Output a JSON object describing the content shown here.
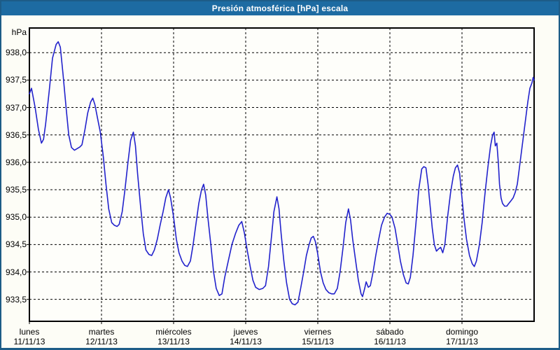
{
  "chart_data": {
    "type": "line",
    "title": "Presión atmosférica [hPa] escala",
    "y_unit": "hPa",
    "xlabel": "",
    "ylabel": "hPa",
    "ylim": [
      933.1,
      938.45
    ],
    "x_hours_range": [
      0,
      168
    ],
    "grid": "dashed-black",
    "legend": "none",
    "colors": {
      "line": "#2222cc",
      "titlebar_bg": "#1d6ba2",
      "titlebar_text": "#ffffff",
      "window_border": "#1d5c87",
      "background": "#fdfdf6",
      "grid_color": "#000000"
    },
    "y_ticks": [
      {
        "value": 938.0,
        "label": "938,0"
      },
      {
        "value": 937.5,
        "label": "937,5"
      },
      {
        "value": 937.0,
        "label": "937,0"
      },
      {
        "value": 936.5,
        "label": "936,5"
      },
      {
        "value": 936.0,
        "label": "936,0"
      },
      {
        "value": 935.5,
        "label": "935,5"
      },
      {
        "value": 935.0,
        "label": "935,0"
      },
      {
        "value": 934.5,
        "label": "934,5"
      },
      {
        "value": 934.0,
        "label": "934,0"
      },
      {
        "value": 933.5,
        "label": "933,5"
      }
    ],
    "x_ticks": [
      {
        "hour": 0,
        "day": "lunes",
        "date": "11/11/13"
      },
      {
        "hour": 24,
        "day": "martes",
        "date": "12/11/13"
      },
      {
        "hour": 48,
        "day": "miércoles",
        "date": "13/11/13"
      },
      {
        "hour": 72,
        "day": "jueves",
        "date": "14/11/13"
      },
      {
        "hour": 96,
        "day": "viernes",
        "date": "15/11/13"
      },
      {
        "hour": 120,
        "day": "sábado",
        "date": "16/11/13"
      },
      {
        "hour": 144,
        "day": "domingo",
        "date": "17/11/13"
      }
    ],
    "series": [
      {
        "name": "Presión atmosférica",
        "color": "#2222cc",
        "points": [
          [
            0,
            937.25
          ],
          [
            0.7,
            937.35
          ],
          [
            1.9,
            937.0
          ],
          [
            3,
            936.6
          ],
          [
            4,
            936.35
          ],
          [
            4.7,
            936.42
          ],
          [
            5.4,
            936.7
          ],
          [
            6.6,
            937.3
          ],
          [
            7.7,
            937.9
          ],
          [
            8.9,
            938.15
          ],
          [
            9.6,
            938.2
          ],
          [
            10.3,
            938.1
          ],
          [
            11.2,
            937.6
          ],
          [
            12.2,
            937.0
          ],
          [
            13.1,
            936.5
          ],
          [
            14,
            936.27
          ],
          [
            15,
            936.22
          ],
          [
            15.9,
            936.25
          ],
          [
            16.8,
            936.28
          ],
          [
            17.5,
            936.32
          ],
          [
            18.5,
            936.6
          ],
          [
            19.4,
            936.9
          ],
          [
            20.4,
            937.1
          ],
          [
            21.1,
            937.17
          ],
          [
            21.8,
            937.05
          ],
          [
            22.7,
            936.8
          ],
          [
            23.6,
            936.55
          ],
          [
            24.6,
            936.1
          ],
          [
            25.5,
            935.6
          ],
          [
            26.4,
            935.15
          ],
          [
            27.4,
            934.9
          ],
          [
            28.3,
            934.85
          ],
          [
            29.2,
            934.83
          ],
          [
            29.9,
            934.87
          ],
          [
            30.9,
            935.1
          ],
          [
            31.8,
            935.5
          ],
          [
            32.8,
            936.0
          ],
          [
            33.7,
            936.4
          ],
          [
            34.6,
            936.55
          ],
          [
            35.3,
            936.3
          ],
          [
            36,
            935.8
          ],
          [
            37,
            935.2
          ],
          [
            37.9,
            934.7
          ],
          [
            38.8,
            934.4
          ],
          [
            39.8,
            934.32
          ],
          [
            40.7,
            934.3
          ],
          [
            41.6,
            934.4
          ],
          [
            42.6,
            934.6
          ],
          [
            43.5,
            934.85
          ],
          [
            44.5,
            935.1
          ],
          [
            45.4,
            935.35
          ],
          [
            46.3,
            935.5
          ],
          [
            47,
            935.35
          ],
          [
            48,
            935.0
          ],
          [
            48.9,
            934.6
          ],
          [
            49.8,
            934.35
          ],
          [
            50.8,
            934.2
          ],
          [
            51.7,
            934.12
          ],
          [
            52.6,
            934.1
          ],
          [
            53.6,
            934.2
          ],
          [
            54.5,
            934.5
          ],
          [
            55.5,
            934.9
          ],
          [
            56.4,
            935.25
          ],
          [
            57.3,
            935.5
          ],
          [
            58,
            935.6
          ],
          [
            58.7,
            935.4
          ],
          [
            59.4,
            935.0
          ],
          [
            60.4,
            934.5
          ],
          [
            61.3,
            934.0
          ],
          [
            62.2,
            933.7
          ],
          [
            63.2,
            933.57
          ],
          [
            64.1,
            933.6
          ],
          [
            65,
            933.9
          ],
          [
            66.2,
            934.2
          ],
          [
            67.4,
            934.5
          ],
          [
            68.6,
            934.7
          ],
          [
            69.7,
            934.85
          ],
          [
            70.7,
            934.92
          ],
          [
            71.6,
            934.7
          ],
          [
            72.5,
            934.4
          ],
          [
            73.5,
            934.1
          ],
          [
            74.4,
            933.85
          ],
          [
            75.3,
            933.72
          ],
          [
            76.5,
            933.68
          ],
          [
            77.7,
            933.7
          ],
          [
            78.6,
            933.75
          ],
          [
            79.6,
            934.1
          ],
          [
            80.5,
            934.6
          ],
          [
            81.4,
            935.1
          ],
          [
            82.4,
            935.37
          ],
          [
            83.1,
            935.15
          ],
          [
            83.8,
            934.7
          ],
          [
            84.7,
            934.2
          ],
          [
            85.6,
            933.8
          ],
          [
            86.6,
            933.5
          ],
          [
            87.5,
            933.42
          ],
          [
            88.4,
            933.4
          ],
          [
            89.4,
            933.45
          ],
          [
            90.3,
            933.7
          ],
          [
            91.3,
            934.0
          ],
          [
            92.2,
            934.3
          ],
          [
            93.1,
            934.5
          ],
          [
            93.8,
            934.62
          ],
          [
            94.5,
            934.65
          ],
          [
            95.2,
            934.55
          ],
          [
            95.9,
            934.35
          ],
          [
            96.9,
            934.0
          ],
          [
            97.8,
            933.8
          ],
          [
            98.7,
            933.68
          ],
          [
            99.7,
            933.62
          ],
          [
            100.6,
            933.6
          ],
          [
            101.5,
            933.6
          ],
          [
            102.5,
            933.7
          ],
          [
            103.4,
            934.0
          ],
          [
            104.4,
            934.45
          ],
          [
            105.3,
            934.9
          ],
          [
            106.2,
            935.15
          ],
          [
            106.9,
            934.95
          ],
          [
            107.6,
            934.6
          ],
          [
            108.6,
            934.2
          ],
          [
            109.5,
            933.85
          ],
          [
            110.4,
            933.6
          ],
          [
            110.9,
            933.55
          ],
          [
            111.6,
            933.7
          ],
          [
            112.1,
            933.82
          ],
          [
            112.8,
            933.72
          ],
          [
            113.5,
            933.75
          ],
          [
            114.4,
            934.0
          ],
          [
            115.3,
            934.3
          ],
          [
            116.3,
            934.6
          ],
          [
            117.2,
            934.85
          ],
          [
            118.2,
            935.0
          ],
          [
            119.1,
            935.07
          ],
          [
            120,
            935.05
          ],
          [
            120.7,
            935.0
          ],
          [
            121.7,
            934.8
          ],
          [
            122.6,
            934.5
          ],
          [
            123.5,
            934.2
          ],
          [
            124.5,
            933.95
          ],
          [
            125.4,
            933.8
          ],
          [
            126.1,
            933.78
          ],
          [
            126.8,
            933.9
          ],
          [
            127.7,
            934.3
          ],
          [
            128.7,
            934.9
          ],
          [
            129.6,
            935.5
          ],
          [
            130.6,
            935.88
          ],
          [
            131.3,
            935.92
          ],
          [
            132,
            935.9
          ],
          [
            132.7,
            935.6
          ],
          [
            133.4,
            935.2
          ],
          [
            134.1,
            934.8
          ],
          [
            134.8,
            934.5
          ],
          [
            135.5,
            934.38
          ],
          [
            136.2,
            934.42
          ],
          [
            136.9,
            934.45
          ],
          [
            137.6,
            934.35
          ],
          [
            138.3,
            934.5
          ],
          [
            139.2,
            935.0
          ],
          [
            140.2,
            935.45
          ],
          [
            141.1,
            935.75
          ],
          [
            141.8,
            935.9
          ],
          [
            142.5,
            935.95
          ],
          [
            143.2,
            935.8
          ],
          [
            143.9,
            935.4
          ],
          [
            144.6,
            935.0
          ],
          [
            145.5,
            934.6
          ],
          [
            146.5,
            934.3
          ],
          [
            147.4,
            934.15
          ],
          [
            148.1,
            934.1
          ],
          [
            148.8,
            934.2
          ],
          [
            149.8,
            934.5
          ],
          [
            150.7,
            934.9
          ],
          [
            151.6,
            935.4
          ],
          [
            152.6,
            935.9
          ],
          [
            153.5,
            936.3
          ],
          [
            154.2,
            936.5
          ],
          [
            154.7,
            936.55
          ],
          [
            155.1,
            936.3
          ],
          [
            155.6,
            936.35
          ],
          [
            156.1,
            936.0
          ],
          [
            156.5,
            935.6
          ],
          [
            157,
            935.35
          ],
          [
            157.5,
            935.25
          ],
          [
            158.2,
            935.2
          ],
          [
            158.9,
            935.2
          ],
          [
            159.6,
            935.25
          ],
          [
            160.3,
            935.3
          ],
          [
            161,
            935.35
          ],
          [
            161.7,
            935.45
          ],
          [
            162.4,
            935.6
          ],
          [
            163.1,
            935.9
          ],
          [
            163.8,
            936.2
          ],
          [
            164.5,
            936.5
          ],
          [
            165.2,
            936.8
          ],
          [
            165.9,
            937.1
          ],
          [
            166.6,
            937.35
          ],
          [
            167.3,
            937.45
          ],
          [
            167.7,
            937.55
          ],
          [
            168,
            937.5
          ]
        ]
      }
    ]
  }
}
